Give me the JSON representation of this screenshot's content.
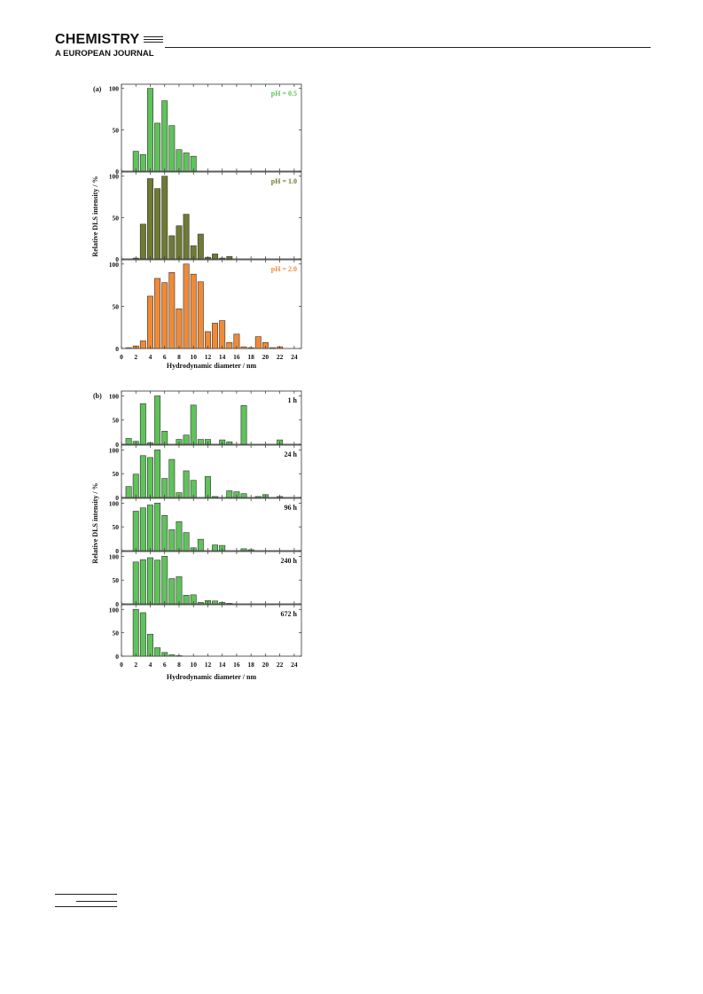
{
  "header": {
    "journal_name": "CHEMISTRY",
    "journal_subtitle": "A EUROPEAN JOURNAL"
  },
  "chart_data": [
    {
      "type": "bar",
      "panel_label": "(a)",
      "xlabel": "Hydrodynamic diameter / nm",
      "ylabel": "Relative DLS intensity / %",
      "xlim": [
        0,
        25
      ],
      "x_ticks": [
        "0",
        "2",
        "4",
        "6",
        "8",
        "10",
        "12",
        "14",
        "16",
        "18",
        "20",
        "22",
        "24"
      ],
      "subplots": [
        {
          "label": "pH = 0.5",
          "color": "#5fc25a",
          "label_color": "#5fc25a",
          "ylim": [
            0,
            105
          ],
          "y_ticks": [
            "0",
            "50",
            "100"
          ],
          "x": [
            2,
            3,
            4,
            5,
            6,
            7,
            8,
            9,
            10
          ],
          "values": [
            24,
            20,
            100,
            58,
            85,
            55,
            26,
            22,
            18
          ]
        },
        {
          "label": "pH = 1.0",
          "color": "#6f7a32",
          "label_color": "#6f7a32",
          "ylim": [
            0,
            105
          ],
          "y_ticks": [
            "0",
            "50",
            "100"
          ],
          "x": [
            2,
            3,
            4,
            5,
            6,
            7,
            8,
            9,
            10,
            11,
            12,
            13,
            14,
            15
          ],
          "values": [
            1,
            42,
            97,
            85,
            100,
            28,
            40,
            54,
            16,
            30,
            2,
            6,
            1,
            3
          ]
        },
        {
          "label": "pH = 2.0",
          "color": "#f08a36",
          "label_color": "#f08a36",
          "ylim": [
            0,
            105
          ],
          "y_ticks": [
            "0",
            "50",
            "100"
          ],
          "x": [
            1,
            2,
            3,
            4,
            5,
            6,
            7,
            8,
            9,
            10,
            11,
            12,
            13,
            14,
            15,
            16,
            17,
            18,
            19,
            20,
            21,
            22
          ],
          "values": [
            1,
            3,
            9,
            62,
            83,
            78,
            90,
            47,
            100,
            88,
            79,
            20,
            30,
            33,
            7,
            17,
            2,
            1,
            14,
            7,
            1,
            2
          ]
        }
      ]
    },
    {
      "type": "bar",
      "panel_label": "(b)",
      "xlabel": "Hydrodynamic diameter / nm",
      "ylabel": "Relative DLS intensity / %",
      "xlim": [
        0,
        25
      ],
      "x_ticks": [
        "0",
        "2",
        "4",
        "6",
        "8",
        "10",
        "12",
        "14",
        "16",
        "18",
        "20",
        "22",
        "24"
      ],
      "subplots": [
        {
          "label": "1 h",
          "color": "#5fc25a",
          "label_color": "#111111",
          "ylim": [
            0,
            110
          ],
          "y_ticks": [
            "0",
            "50",
            "100"
          ],
          "x": [
            1,
            2,
            3,
            4,
            5,
            6,
            8,
            9,
            10,
            11,
            12,
            14,
            15,
            17,
            22
          ],
          "values": [
            12,
            6,
            84,
            3,
            100,
            27,
            10,
            19,
            81,
            10,
            10,
            9,
            5,
            80,
            9
          ]
        },
        {
          "label": "24 h",
          "color": "#5fc25a",
          "label_color": "#111111",
          "ylim": [
            0,
            110
          ],
          "y_ticks": [
            "0",
            "50",
            "100"
          ],
          "x": [
            1,
            2,
            3,
            4,
            5,
            6,
            7,
            8,
            9,
            10,
            12,
            13,
            15,
            16,
            17,
            19,
            20,
            22
          ],
          "values": [
            23,
            49,
            88,
            84,
            100,
            40,
            80,
            10,
            56,
            36,
            44,
            2,
            14,
            12,
            8,
            2,
            6,
            2
          ]
        },
        {
          "label": "96 h",
          "color": "#5fc25a",
          "label_color": "#111111",
          "ylim": [
            0,
            110
          ],
          "y_ticks": [
            "0",
            "50",
            "100"
          ],
          "x": [
            2,
            3,
            4,
            5,
            6,
            7,
            8,
            9,
            10,
            11,
            13,
            14,
            17,
            18
          ],
          "values": [
            83,
            90,
            96,
            100,
            74,
            44,
            61,
            38,
            6,
            24,
            12,
            11,
            4,
            2
          ]
        },
        {
          "label": "240 h",
          "color": "#5fc25a",
          "label_color": "#111111",
          "ylim": [
            0,
            110
          ],
          "y_ticks": [
            "0",
            "50",
            "100"
          ],
          "x": [
            2,
            3,
            4,
            5,
            6,
            7,
            8,
            9,
            10,
            11,
            12,
            13,
            14,
            15
          ],
          "values": [
            88,
            93,
            97,
            92,
            100,
            53,
            57,
            18,
            19,
            3,
            7,
            6,
            3,
            1
          ]
        },
        {
          "label": "672 h",
          "color": "#5fc25a",
          "label_color": "#111111",
          "ylim": [
            0,
            110
          ],
          "y_ticks": [
            "0",
            "50",
            "100"
          ],
          "x": [
            2,
            3,
            4,
            5,
            6,
            7,
            8
          ],
          "values": [
            100,
            93,
            47,
            18,
            8,
            3,
            1
          ]
        }
      ]
    }
  ]
}
